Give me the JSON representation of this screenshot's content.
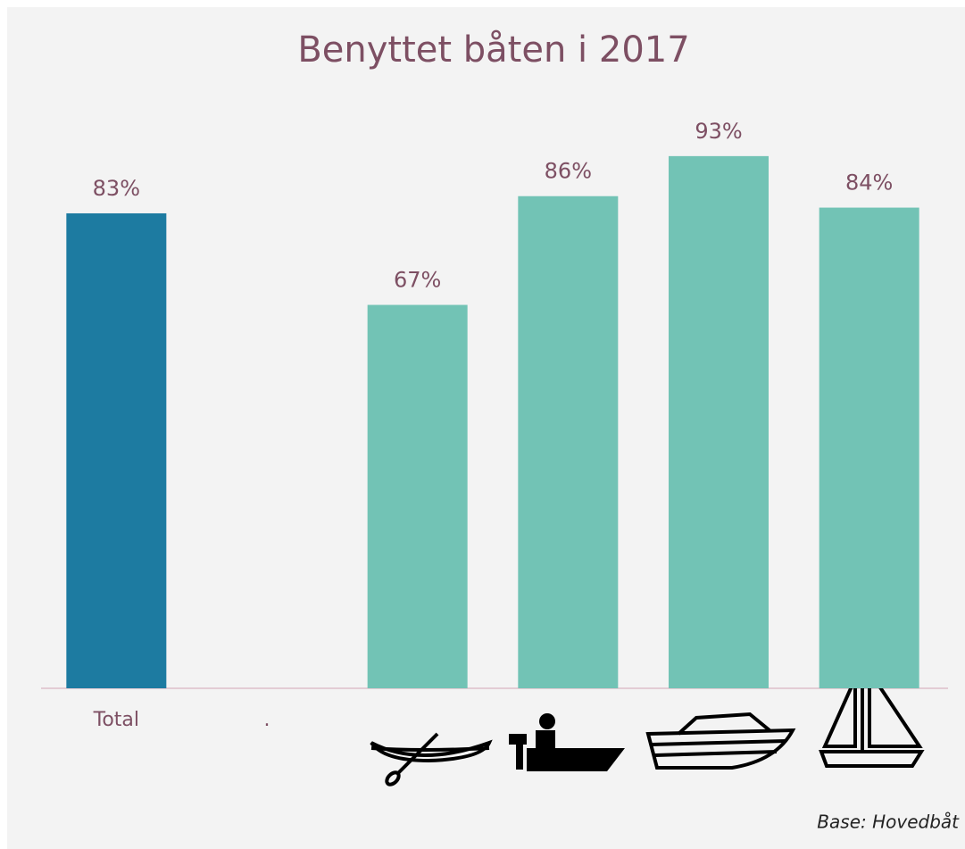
{
  "chart_data": {
    "type": "bar",
    "title": "Benyttet båten i 2017",
    "categories": [
      "Total",
      ".",
      null,
      null,
      null,
      null
    ],
    "values": [
      83,
      null,
      67,
      86,
      93,
      84
    ],
    "value_labels": [
      "83%",
      null,
      "67%",
      "86%",
      "93%",
      "84%"
    ],
    "colors": [
      "#1d7ba1",
      "#72c3b5",
      "#72c3b5",
      "#72c3b5",
      "#72c3b5",
      "#72c3b5"
    ],
    "ylim": [
      0,
      100
    ],
    "footnote": "Base: Hovedbåt"
  }
}
